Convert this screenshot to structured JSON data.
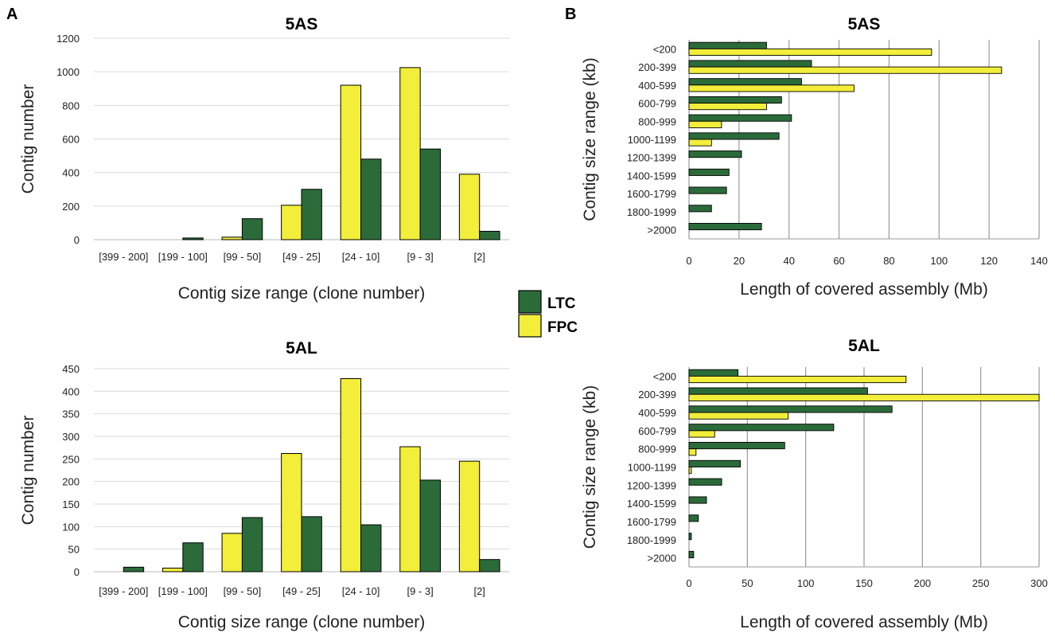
{
  "panel_labels": {
    "a": "A",
    "b": "B"
  },
  "legend": {
    "ltc": "LTC",
    "fpc": "FPC"
  },
  "colors": {
    "ltc": "#2b6b3a",
    "fpc": "#f2ee3a",
    "grid": "#9a9a9a",
    "grid_light": "#d9d9d9"
  },
  "chart_data": [
    {
      "type": "bar",
      "title": "5AS",
      "xlabel": "Contig size range (clone number)",
      "ylabel": "Contig number",
      "categories": [
        "[399 - 200]",
        "[199 - 100]",
        "[99 - 50]",
        "[49 - 25]",
        "[24 - 10]",
        "[9 - 3]",
        "[2]"
      ],
      "series": [
        {
          "name": "FPC",
          "values": [
            0,
            0,
            15,
            205,
            920,
            1025,
            390
          ]
        },
        {
          "name": "LTC",
          "values": [
            0,
            10,
            125,
            300,
            480,
            540,
            50
          ]
        }
      ],
      "ylim": [
        0,
        1200
      ],
      "yticks": [
        0,
        200,
        400,
        600,
        800,
        1000,
        1200
      ],
      "grid": true
    },
    {
      "type": "bar",
      "title": "5AL",
      "xlabel": "Contig size range (clone number)",
      "ylabel": "Contig number",
      "categories": [
        "[399 - 200]",
        "[199 - 100]",
        "[99 - 50]",
        "[49 - 25]",
        "[24 - 10]",
        "[9 - 3]",
        "[2]"
      ],
      "series": [
        {
          "name": "FPC",
          "values": [
            0,
            8,
            85,
            262,
            428,
            277,
            245
          ]
        },
        {
          "name": "LTC",
          "values": [
            10,
            64,
            120,
            122,
            104,
            203,
            27
          ]
        }
      ],
      "ylim": [
        0,
        450
      ],
      "yticks": [
        0,
        50,
        100,
        150,
        200,
        250,
        300,
        350,
        400,
        450
      ],
      "grid": true
    },
    {
      "type": "bar",
      "orientation": "horizontal",
      "title": "5AS",
      "xlabel": "Length of covered assembly (Mb)",
      "ylabel": "Contig size range (kb)",
      "categories": [
        "<200",
        "200-399",
        "400-599",
        "600-799",
        "800-999",
        "1000-1199",
        "1200-1399",
        "1400-1599",
        "1600-1799",
        "1800-1999",
        ">2000"
      ],
      "series": [
        {
          "name": "LTC",
          "values": [
            31,
            49,
            45,
            37,
            41,
            36,
            21,
            16,
            15,
            9,
            29
          ]
        },
        {
          "name": "FPC",
          "values": [
            97,
            125,
            66,
            31,
            13,
            9,
            0,
            0,
            0,
            0,
            0
          ]
        }
      ],
      "xlim": [
        0,
        140
      ],
      "xticks": [
        0,
        20,
        40,
        60,
        80,
        100,
        120,
        140
      ],
      "grid": true
    },
    {
      "type": "bar",
      "orientation": "horizontal",
      "title": "5AL",
      "xlabel": "Length of covered assembly (Mb)",
      "ylabel": "Contig size range (kb)",
      "categories": [
        "<200",
        "200-399",
        "400-599",
        "600-799",
        "800-999",
        "1000-1199",
        "1200-1399",
        "1400-1599",
        "1600-1799",
        "1800-1999",
        ">2000"
      ],
      "series": [
        {
          "name": "LTC",
          "values": [
            42,
            153,
            174,
            124,
            82,
            44,
            28,
            15,
            8,
            2,
            4
          ]
        },
        {
          "name": "FPC",
          "values": [
            186,
            300,
            85,
            22,
            6,
            2,
            0,
            0,
            0,
            0,
            0
          ]
        }
      ],
      "xlim": [
        0,
        300
      ],
      "xticks": [
        0,
        50,
        100,
        150,
        200,
        250,
        300
      ],
      "grid": true
    }
  ]
}
